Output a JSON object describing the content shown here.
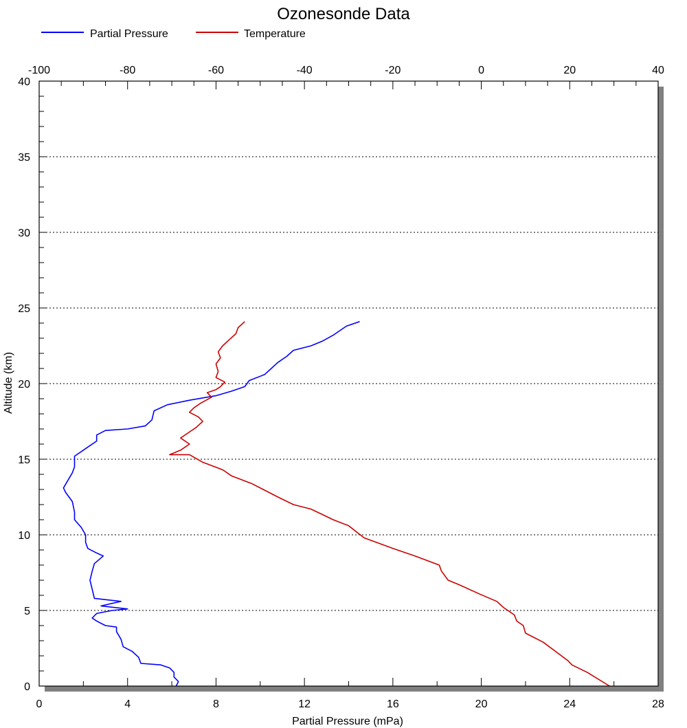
{
  "chart_data": {
    "type": "line",
    "title": "Ozonesonde Data",
    "xlabel": "Partial Pressure (mPa)",
    "ylabel": "Altitude (km)",
    "x_bottom": {
      "range": [
        0,
        28
      ],
      "ticks": [
        "0",
        "4",
        "8",
        "12",
        "16",
        "20",
        "24",
        "28"
      ]
    },
    "x_top": {
      "range": [
        -100,
        40
      ],
      "ticks": [
        "-100",
        "-80",
        "-60",
        "-40",
        "-20",
        "0",
        "20",
        "40"
      ]
    },
    "y": {
      "range": [
        0,
        40
      ],
      "ticks": [
        "0",
        "5",
        "10",
        "15",
        "20",
        "25",
        "30",
        "35",
        "40"
      ]
    },
    "grid": "horizontal dotted",
    "legend_position": "top-left",
    "colors": {
      "partial_pressure": "#0000ff",
      "temperature": "#cc0000"
    },
    "series": [
      {
        "name": "Partial Pressure",
        "axis": "bottom",
        "points": [
          [
            6.2,
            0.0
          ],
          [
            6.3,
            0.3
          ],
          [
            6.1,
            0.6
          ],
          [
            6.1,
            0.9
          ],
          [
            5.9,
            1.2
          ],
          [
            5.5,
            1.4
          ],
          [
            4.6,
            1.5
          ],
          [
            4.5,
            1.9
          ],
          [
            4.2,
            2.3
          ],
          [
            3.8,
            2.6
          ],
          [
            3.7,
            3.1
          ],
          [
            3.5,
            3.6
          ],
          [
            3.5,
            3.9
          ],
          [
            3.0,
            4.0
          ],
          [
            2.6,
            4.3
          ],
          [
            2.4,
            4.5
          ],
          [
            2.6,
            4.8
          ],
          [
            3.3,
            5.0
          ],
          [
            4.0,
            5.1
          ],
          [
            2.8,
            5.3
          ],
          [
            3.7,
            5.6
          ],
          [
            2.5,
            5.8
          ],
          [
            2.4,
            6.4
          ],
          [
            2.3,
            7.0
          ],
          [
            2.4,
            7.6
          ],
          [
            2.5,
            8.1
          ],
          [
            2.9,
            8.6
          ],
          [
            2.6,
            8.8
          ],
          [
            2.2,
            9.1
          ],
          [
            2.1,
            9.5
          ],
          [
            2.1,
            10.0
          ],
          [
            1.9,
            10.5
          ],
          [
            1.6,
            11.0
          ],
          [
            1.6,
            11.5
          ],
          [
            1.5,
            12.2
          ],
          [
            1.2,
            12.8
          ],
          [
            1.1,
            13.1
          ],
          [
            1.3,
            13.6
          ],
          [
            1.5,
            14.1
          ],
          [
            1.6,
            14.5
          ],
          [
            1.6,
            15.2
          ],
          [
            2.0,
            15.6
          ],
          [
            2.3,
            15.9
          ],
          [
            2.6,
            16.2
          ],
          [
            2.6,
            16.6
          ],
          [
            3.0,
            16.9
          ],
          [
            4.0,
            17.0
          ],
          [
            4.8,
            17.2
          ],
          [
            5.1,
            17.6
          ],
          [
            5.2,
            18.2
          ],
          [
            5.8,
            18.6
          ],
          [
            6.8,
            18.9
          ],
          [
            8.0,
            19.2
          ],
          [
            8.7,
            19.5
          ],
          [
            9.3,
            19.8
          ],
          [
            9.5,
            20.2
          ],
          [
            10.2,
            20.6
          ],
          [
            10.5,
            21.0
          ],
          [
            10.8,
            21.4
          ],
          [
            11.2,
            21.8
          ],
          [
            11.5,
            22.2
          ],
          [
            12.3,
            22.5
          ],
          [
            12.8,
            22.8
          ],
          [
            13.3,
            23.2
          ],
          [
            13.6,
            23.5
          ],
          [
            13.9,
            23.8
          ],
          [
            14.5,
            24.1
          ]
        ]
      },
      {
        "name": "Temperature",
        "axis": "top",
        "points": [
          [
            29.0,
            0.0
          ],
          [
            24.0,
            0.9
          ],
          [
            20.5,
            1.4
          ],
          [
            19.5,
            1.7
          ],
          [
            14.0,
            2.9
          ],
          [
            10.0,
            3.5
          ],
          [
            9.5,
            4.0
          ],
          [
            8.0,
            4.3
          ],
          [
            7.5,
            4.7
          ],
          [
            5.0,
            5.2
          ],
          [
            3.5,
            5.6
          ],
          [
            -0.5,
            6.1
          ],
          [
            -5.0,
            6.7
          ],
          [
            -7.5,
            7.0
          ],
          [
            -9.0,
            7.6
          ],
          [
            -9.5,
            8.0
          ],
          [
            -15.0,
            8.6
          ],
          [
            -20.0,
            9.1
          ],
          [
            -26.5,
            9.8
          ],
          [
            -30.0,
            10.6
          ],
          [
            -33.5,
            11.0
          ],
          [
            -38.5,
            11.7
          ],
          [
            -42.5,
            12.0
          ],
          [
            -46.0,
            12.5
          ],
          [
            -52.0,
            13.4
          ],
          [
            -56.5,
            13.9
          ],
          [
            -58.5,
            14.3
          ],
          [
            -63.0,
            14.8
          ],
          [
            -66.0,
            15.3
          ],
          [
            -70.5,
            15.3
          ],
          [
            -68.0,
            15.6
          ],
          [
            -66.0,
            16.0
          ],
          [
            -68.0,
            16.4
          ],
          [
            -66.0,
            16.8
          ],
          [
            -64.5,
            17.1
          ],
          [
            -63.0,
            17.5
          ],
          [
            -64.0,
            17.8
          ],
          [
            -66.0,
            18.1
          ],
          [
            -65.0,
            18.4
          ],
          [
            -63.5,
            18.7
          ],
          [
            -61.0,
            19.1
          ],
          [
            -62.0,
            19.4
          ],
          [
            -60.0,
            19.6
          ],
          [
            -59.0,
            19.8
          ],
          [
            -58.0,
            20.1
          ],
          [
            -60.0,
            20.4
          ],
          [
            -59.5,
            20.8
          ],
          [
            -60.0,
            21.3
          ],
          [
            -59.0,
            21.7
          ],
          [
            -59.5,
            22.1
          ],
          [
            -58.5,
            22.5
          ],
          [
            -57.0,
            22.9
          ],
          [
            -55.5,
            23.3
          ],
          [
            -55.0,
            23.7
          ],
          [
            -53.5,
            24.1
          ]
        ]
      }
    ]
  }
}
